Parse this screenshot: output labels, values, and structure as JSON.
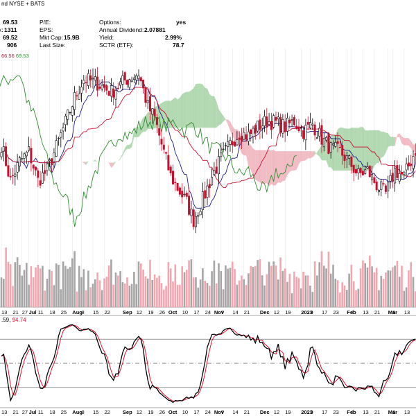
{
  "header": {
    "source": "nd NYSE + BATS",
    "left_values": [
      "69.53",
      "1311",
      "69.52",
      "906"
    ],
    "left_prefix": [
      "",
      "x:",
      "",
      ""
    ],
    "labels_col1": [
      "P/E:",
      "EPS:",
      "Mkt Cap:",
      "Last Size:"
    ],
    "values_col1": [
      "",
      "",
      "15.9B",
      ""
    ],
    "labels_col2": [
      "Options:",
      "Annual Dividend:",
      "Yield:",
      "SCTR (ETF):"
    ],
    "values_col2": [
      "yes",
      "2.07881",
      "2.99%",
      "78.7"
    ]
  },
  "ma_readout": {
    "v1": "66.56",
    "v2": "69.53",
    "c1": "#c0113a",
    "c2": "#2e8b2e"
  },
  "osc_readout": {
    "v1": ".59,",
    "v2": "94.74",
    "c2": "#e0102f"
  },
  "colors": {
    "up": "#000000",
    "down": "#c8102e",
    "cloud_green": "#7fbf7f",
    "cloud_red": "#e8909c",
    "conversion": "#1a1a8c",
    "base": "#c8102e",
    "lagging": "#2e8b2e",
    "vol_up": "#a6a6a6",
    "vol_down": "#f2a7b0",
    "stoch_k": "#000000",
    "stoch_d": "#e0102f"
  },
  "chart_data": {
    "type": "candlestick",
    "x_labels_top": [
      {
        "t": "13",
        "i": 0
      },
      {
        "t": "21",
        "i": 5
      },
      {
        "t": "27",
        "i": 9
      },
      {
        "t": "Jul",
        "i": 12,
        "b": true
      },
      {
        "t": "11",
        "i": 16
      },
      {
        "t": "18",
        "i": 21
      },
      {
        "t": "25",
        "i": 26
      },
      {
        "t": "Aug",
        "i": 31,
        "b": true
      },
      {
        "t": "8",
        "i": 35
      },
      {
        "t": "15",
        "i": 40
      },
      {
        "t": "22",
        "i": 45
      },
      {
        "t": "Sep",
        "i": 53,
        "b": true
      },
      {
        "t": "12",
        "i": 59
      },
      {
        "t": "19",
        "i": 64
      },
      {
        "t": "26",
        "i": 69
      },
      {
        "t": "Oct",
        "i": 73,
        "b": true
      },
      {
        "t": "10",
        "i": 79
      },
      {
        "t": "17",
        "i": 84
      },
      {
        "t": "24",
        "i": 89
      },
      {
        "t": "Nov",
        "i": 93,
        "b": true
      },
      {
        "t": "7",
        "i": 96
      },
      {
        "t": "14",
        "i": 101
      },
      {
        "t": "21",
        "i": 106
      },
      {
        "t": "Dec",
        "i": 113,
        "b": true
      },
      {
        "t": "12",
        "i": 119
      },
      {
        "t": "19",
        "i": 124
      },
      {
        "t": "2023",
        "i": 131,
        "b": true
      },
      {
        "t": "9",
        "i": 135
      },
      {
        "t": "17",
        "i": 140
      },
      {
        "t": "23",
        "i": 145
      },
      {
        "t": "Feb",
        "i": 151,
        "b": true
      },
      {
        "t": "6",
        "i": 153
      },
      {
        "t": "13",
        "i": 158
      },
      {
        "t": "21",
        "i": 163
      },
      {
        "t": "Mar",
        "i": 169,
        "b": true
      },
      {
        "t": "6",
        "i": 171
      },
      {
        "t": "13",
        "i": 176
      }
    ],
    "x_labels_bottom": [
      {
        "t": "13",
        "i": 0
      },
      {
        "t": "21",
        "i": 5
      },
      {
        "t": "27",
        "i": 9
      },
      {
        "t": "Jul",
        "i": 12,
        "b": true
      },
      {
        "t": "11",
        "i": 16
      },
      {
        "t": "18",
        "i": 21
      },
      {
        "t": "25",
        "i": 26
      },
      {
        "t": "Aug",
        "i": 31,
        "b": true
      },
      {
        "t": "8",
        "i": 35
      },
      {
        "t": "15",
        "i": 40
      },
      {
        "t": "22",
        "i": 45
      },
      {
        "t": "Sep",
        "i": 53,
        "b": true
      },
      {
        "t": "12",
        "i": 59
      },
      {
        "t": "19",
        "i": 64
      },
      {
        "t": "26",
        "i": 69
      },
      {
        "t": "Oct",
        "i": 73,
        "b": true
      },
      {
        "t": "10",
        "i": 79
      },
      {
        "t": "17",
        "i": 84
      },
      {
        "t": "24",
        "i": 89
      },
      {
        "t": "Nov",
        "i": 93,
        "b": true
      },
      {
        "t": "7",
        "i": 96
      },
      {
        "t": "14",
        "i": 101
      },
      {
        "t": "21",
        "i": 106
      },
      {
        "t": "Dec",
        "i": 113,
        "b": true
      },
      {
        "t": "12",
        "i": 119
      },
      {
        "t": "19",
        "i": 124
      },
      {
        "t": "2023",
        "i": 131,
        "b": true
      },
      {
        "t": "9",
        "i": 135
      },
      {
        "t": "17",
        "i": 140
      },
      {
        "t": "23",
        "i": 145
      },
      {
        "t": "Feb",
        "i": 151,
        "b": true
      },
      {
        "t": "6",
        "i": 153
      },
      {
        "t": "13",
        "i": 158
      },
      {
        "t": "21",
        "i": 163
      },
      {
        "t": "Mar",
        "i": 169,
        "b": true
      },
      {
        "t": "6",
        "i": 171
      },
      {
        "t": "13",
        "i": 176
      }
    ],
    "n_bars": 182,
    "price_anchors": [
      [
        0,
        66.0
      ],
      [
        4,
        63.5
      ],
      [
        8,
        64.8
      ],
      [
        12,
        65.5
      ],
      [
        16,
        63.5
      ],
      [
        20,
        64.2
      ],
      [
        24,
        65.8
      ],
      [
        28,
        67.5
      ],
      [
        32,
        69.2
      ],
      [
        36,
        70.5
      ],
      [
        42,
        70.2
      ],
      [
        48,
        69.6
      ],
      [
        54,
        70.4
      ],
      [
        60,
        70.9
      ],
      [
        64,
        68.6
      ],
      [
        67,
        67.8
      ],
      [
        70,
        66.0
      ],
      [
        74,
        63.8
      ],
      [
        77,
        63.0
      ],
      [
        81,
        62.0
      ],
      [
        84,
        60.8
      ],
      [
        88,
        62.2
      ],
      [
        92,
        63.8
      ],
      [
        96,
        65.0
      ],
      [
        100,
        66.0
      ],
      [
        104,
        66.8
      ],
      [
        108,
        66.6
      ],
      [
        112,
        67.2
      ],
      [
        116,
        67.6
      ],
      [
        120,
        67.5
      ],
      [
        124,
        67.2
      ],
      [
        128,
        67.6
      ],
      [
        132,
        66.9
      ],
      [
        136,
        67.4
      ],
      [
        140,
        66.4
      ],
      [
        144,
        65.7
      ],
      [
        148,
        65.5
      ],
      [
        152,
        64.8
      ],
      [
        156,
        63.9
      ],
      [
        160,
        64.2
      ],
      [
        164,
        63.2
      ],
      [
        168,
        62.6
      ],
      [
        172,
        64.2
      ],
      [
        176,
        63.8
      ],
      [
        181,
        65.6
      ]
    ],
    "volume_range": [
      0,
      100
    ],
    "stoch_levels": [
      80,
      50,
      20
    ],
    "stoch_range": [
      0,
      100
    ]
  }
}
